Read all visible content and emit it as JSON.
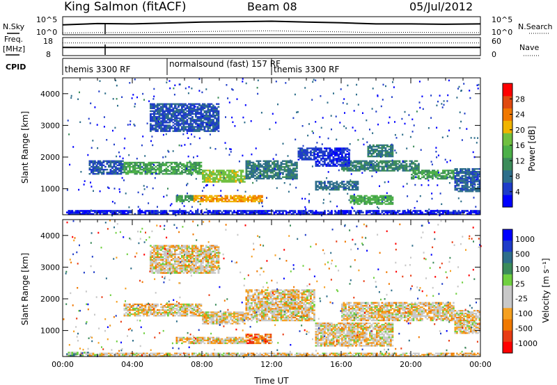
{
  "header": {
    "station": "King Salmon (fitACF)",
    "beam": "Beam 08",
    "date": "05/Jul/2012"
  },
  "colors": {
    "power_scale": [
      "#0000ff",
      "#1e3cc8",
      "#2e6e8a",
      "#3c8c5a",
      "#4cb048",
      "#70c040",
      "#f0b400",
      "#f07800",
      "#e04a10",
      "#ff0000"
    ],
    "velocity_scale": [
      "#ff0000",
      "#e83c14",
      "#f07800",
      "#f5a020",
      "#c8c8c8",
      "#c8c8c8",
      "#70d040",
      "#3c8c5a",
      "#2e6e8a",
      "#1e3cc8",
      "#0000ff"
    ]
  },
  "chart_data": [
    {
      "type": "line",
      "panel": "noise",
      "left_label": "N.Sky",
      "right_label": "N.Search",
      "left_ticks": [
        "10^5",
        "10^0"
      ],
      "right_ticks": [
        "10^5",
        "10^0"
      ],
      "xlim": [
        0,
        24
      ],
      "series": [
        {
          "name": "N.Sky",
          "style": "solid",
          "x": [
            0,
            2,
            4,
            6,
            8,
            10,
            12,
            14,
            16,
            18,
            20,
            22,
            24
          ],
          "y": [
            0.55,
            0.62,
            0.6,
            0.65,
            0.7,
            0.72,
            0.75,
            0.7,
            0.66,
            0.6,
            0.6,
            0.58,
            0.6
          ]
        },
        {
          "name": "N.Search",
          "style": "dotted",
          "x": [
            0,
            2,
            4,
            6,
            8,
            10,
            12,
            14,
            16,
            18,
            20,
            22,
            24
          ],
          "y": [
            0.1,
            0.12,
            0.12,
            0.14,
            0.18,
            0.2,
            0.22,
            0.18,
            0.16,
            0.12,
            0.14,
            0.12,
            0.12
          ]
        }
      ]
    },
    {
      "type": "line",
      "panel": "freq_nave",
      "left_label": "Freq.",
      "left_unit": "[MHz]",
      "right_label": "Nave",
      "left_ticks": [
        "18",
        "8"
      ],
      "right_ticks": [
        "60",
        "0"
      ],
      "xlim": [
        0,
        24
      ],
      "series": [
        {
          "name": "Freq.",
          "style": "solid",
          "x": [
            0,
            24
          ],
          "y": [
            0.45,
            0.45
          ]
        },
        {
          "name": "Nave",
          "style": "dotted",
          "x": [
            0,
            24
          ],
          "y": [
            0.7,
            0.7
          ]
        }
      ]
    },
    {
      "type": "table",
      "panel": "cpid",
      "label": "CPID",
      "segments": [
        {
          "start": 0.0,
          "label": "themis 3300 RF"
        },
        {
          "start": 6.0,
          "label": "normalsound (fast) 157 RF"
        },
        {
          "start": 12.0,
          "label": "themis 3300 RF"
        }
      ]
    },
    {
      "type": "heatmap",
      "panel": "power",
      "ylabel": "Slant Range [km]",
      "xlabel": "",
      "xlim": [
        0,
        24
      ],
      "ylim": [
        180,
        4500
      ],
      "yticks": [
        1000,
        2000,
        3000,
        4000
      ],
      "colorbar_label": "Power [dB]",
      "colorbar_ticks": [
        4,
        8,
        12,
        16,
        20,
        24,
        28
      ],
      "colorbar_range": [
        0,
        32
      ],
      "regions": [
        {
          "t0": 0.2,
          "t1": 24,
          "r0": 180,
          "r1": 330,
          "v": 3
        },
        {
          "t0": 1.5,
          "t1": 3.5,
          "r0": 1450,
          "r1": 1900,
          "v": 6
        },
        {
          "t0": 3.5,
          "t1": 8.0,
          "r0": 1450,
          "r1": 1850,
          "v": 13
        },
        {
          "t0": 8.0,
          "t1": 10.5,
          "r0": 1200,
          "r1": 1600,
          "v": 18
        },
        {
          "t0": 10.5,
          "t1": 13.5,
          "r0": 1300,
          "r1": 1900,
          "v": 9
        },
        {
          "t0": 13.5,
          "t1": 14.5,
          "r0": 1900,
          "r1": 2300,
          "v": 5
        },
        {
          "t0": 7.5,
          "t1": 11.5,
          "r0": 580,
          "r1": 800,
          "v": 22
        },
        {
          "t0": 6.5,
          "t1": 7.5,
          "r0": 580,
          "r1": 800,
          "v": 12
        },
        {
          "t0": 5.0,
          "t1": 9.0,
          "r0": 2800,
          "r1": 3700,
          "v": 6
        },
        {
          "t0": 14.5,
          "t1": 17.0,
          "r0": 950,
          "r1": 1250,
          "v": 8
        },
        {
          "t0": 16.5,
          "t1": 19.0,
          "r0": 500,
          "r1": 800,
          "v": 14
        },
        {
          "t0": 16.0,
          "t1": 20.5,
          "r0": 1550,
          "r1": 1900,
          "v": 10
        },
        {
          "t0": 20.0,
          "t1": 22.5,
          "r0": 1300,
          "r1": 1600,
          "v": 13
        },
        {
          "t0": 17.5,
          "t1": 19.0,
          "r0": 2000,
          "r1": 2400,
          "v": 9
        },
        {
          "t0": 22.5,
          "t1": 24.0,
          "r0": 900,
          "r1": 1650,
          "v": 7
        },
        {
          "t0": 14.5,
          "t1": 16.5,
          "r0": 1700,
          "r1": 2300,
          "v": 4
        }
      ]
    },
    {
      "type": "heatmap",
      "panel": "velocity",
      "ylabel": "Slant Range [km]",
      "xlabel": "Time UT",
      "xlim": [
        0,
        24
      ],
      "ylim": [
        180,
        4500
      ],
      "yticks": [
        1000,
        2000,
        3000,
        4000
      ],
      "xticks": [
        "00:00",
        "04:00",
        "08:00",
        "12:00",
        "16:00",
        "20:00",
        "00:00"
      ],
      "colorbar_label": "Velocity [m s⁻¹]",
      "colorbar_ticks": [
        "1000",
        "500",
        "100",
        "25",
        "-25",
        "-100",
        "-500",
        "-1000"
      ],
      "regions": [
        {
          "t0": 0.2,
          "t1": 1.5,
          "r0": 180,
          "r1": 330,
          "v": 6
        },
        {
          "t0": 1.5,
          "t1": 24,
          "r0": 180,
          "r1": 300,
          "v": 4
        },
        {
          "t0": 3.5,
          "t1": 8.0,
          "r0": 1450,
          "r1": 1850,
          "v": 4
        },
        {
          "t0": 8.0,
          "t1": 10.5,
          "r0": 1200,
          "r1": 1600,
          "v": 4
        },
        {
          "t0": 10.5,
          "t1": 14.5,
          "r0": 1300,
          "r1": 2300,
          "v": 4
        },
        {
          "t0": 6.5,
          "t1": 10.5,
          "r0": 580,
          "r1": 800,
          "v": 4
        },
        {
          "t0": 10.5,
          "t1": 12.0,
          "r0": 580,
          "r1": 900,
          "v": 2
        },
        {
          "t0": 5.0,
          "t1": 9.0,
          "r0": 2800,
          "r1": 3700,
          "v": 4
        },
        {
          "t0": 14.5,
          "t1": 19.0,
          "r0": 500,
          "r1": 1250,
          "v": 4
        },
        {
          "t0": 16.0,
          "t1": 22.5,
          "r0": 1300,
          "r1": 1900,
          "v": 4
        },
        {
          "t0": 22.5,
          "t1": 24.0,
          "r0": 900,
          "r1": 1650,
          "v": 4
        }
      ]
    }
  ]
}
